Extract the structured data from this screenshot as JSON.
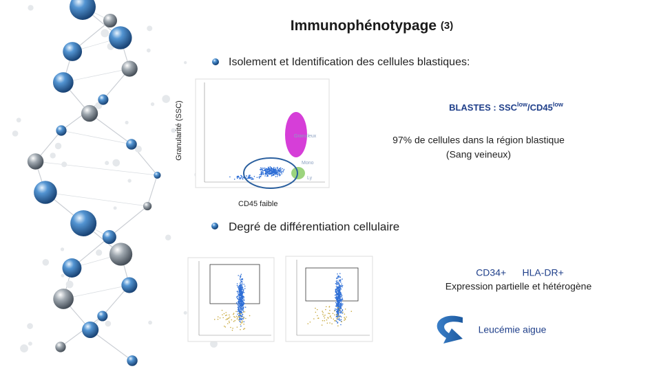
{
  "slide": {
    "title": "Immunophénotypage",
    "title_number": "(3)",
    "section1": {
      "bullet": "Isolement et Identification des cellules blastiques:",
      "y_label": "Granularité (SSC)",
      "gates": [
        "Granuleux",
        "Mono",
        "Ly"
      ],
      "x_label": "CD45 faible",
      "blasts": {
        "prefix": "BLASTES :  SSC",
        "sup1": "low",
        "middle": "/CD45",
        "sup2": "low"
      },
      "note": [
        "97% de cellules dans la région blastique",
        "(Sang veineux)"
      ]
    },
    "section2": {
      "bullet": "Degré de différentiation cellulaire",
      "markers": "CD34+      HLA-DR+",
      "expression": "Expression partielle et hétérogène",
      "conclusion": "Leucémie aigue"
    }
  }
}
